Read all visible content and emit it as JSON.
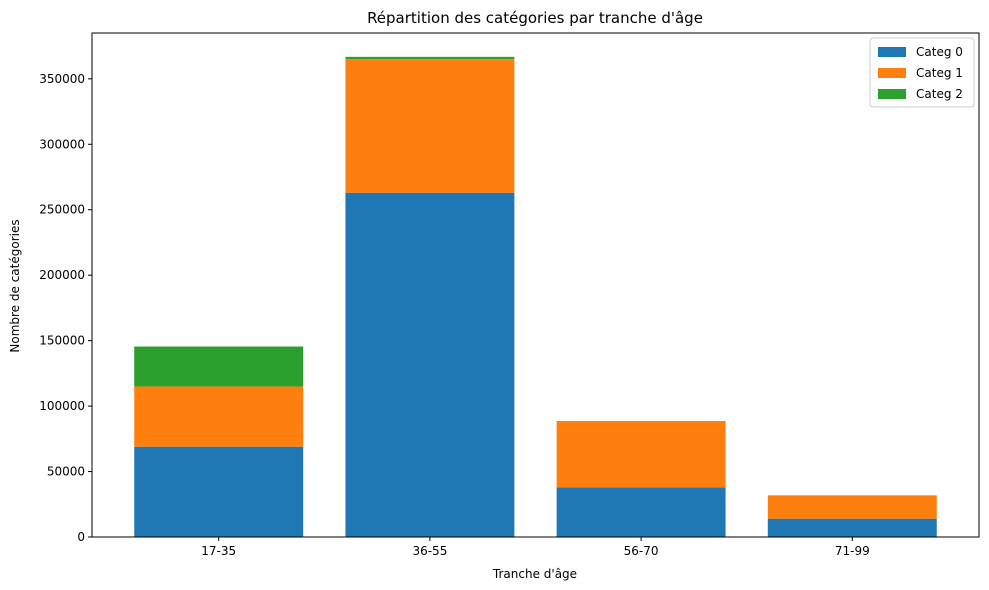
{
  "chart_data": {
    "type": "bar",
    "stacked": true,
    "title": "Répartition des catégories par tranche d'âge",
    "xlabel": "Tranche d'âge",
    "ylabel": "Nombre de catégories",
    "categories": [
      "17-35",
      "36-55",
      "56-70",
      "71-99"
    ],
    "series": [
      {
        "name": "Categ 0",
        "color": "#1f77b4",
        "values": [
          69000,
          263000,
          38000,
          14000
        ]
      },
      {
        "name": "Categ 1",
        "color": "#ff7f0e",
        "values": [
          46000,
          102000,
          50000,
          17500
        ]
      },
      {
        "name": "Categ 2",
        "color": "#2ca02c",
        "values": [
          30500,
          1800,
          500,
          300
        ]
      }
    ],
    "ylim": [
      0,
      385000
    ],
    "yticks": [
      0,
      50000,
      100000,
      150000,
      200000,
      250000,
      300000,
      350000
    ],
    "grid": false,
    "legend_position": "top-right"
  }
}
